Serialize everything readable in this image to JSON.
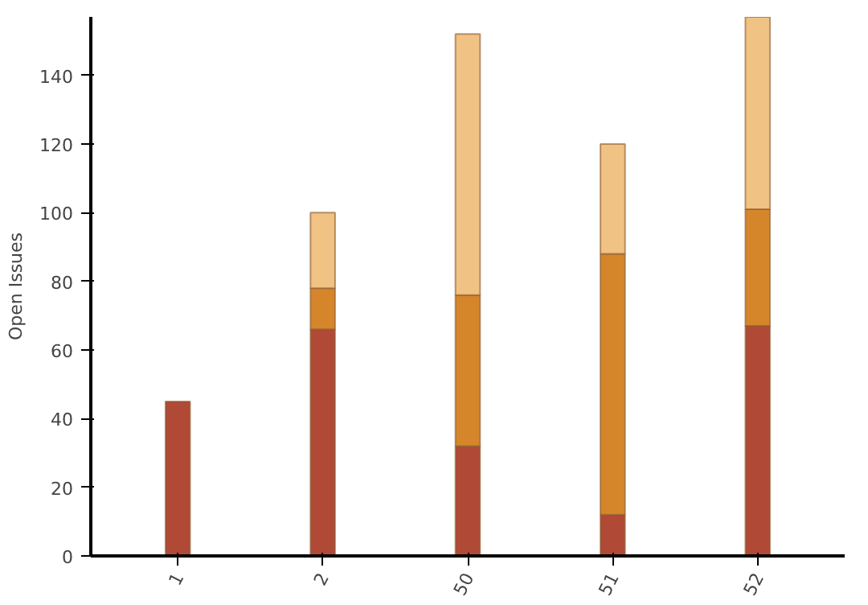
{
  "chart_data": {
    "type": "bar",
    "stacked": true,
    "ylabel": "Open Issues",
    "categories": [
      "1",
      "2",
      "50",
      "51",
      "52"
    ],
    "series": [
      {
        "color": "#b04a36",
        "values": [
          45,
          66,
          32,
          12,
          67
        ]
      },
      {
        "color": "#d6862a",
        "values": [
          0,
          12,
          44,
          76,
          34
        ]
      },
      {
        "color": "#f0c283",
        "values": [
          0,
          22,
          76,
          32,
          56
        ]
      }
    ],
    "ylim": [
      0,
      157
    ],
    "yticks": [
      0,
      20,
      40,
      60,
      80,
      100,
      120,
      140
    ],
    "grid": false
  }
}
